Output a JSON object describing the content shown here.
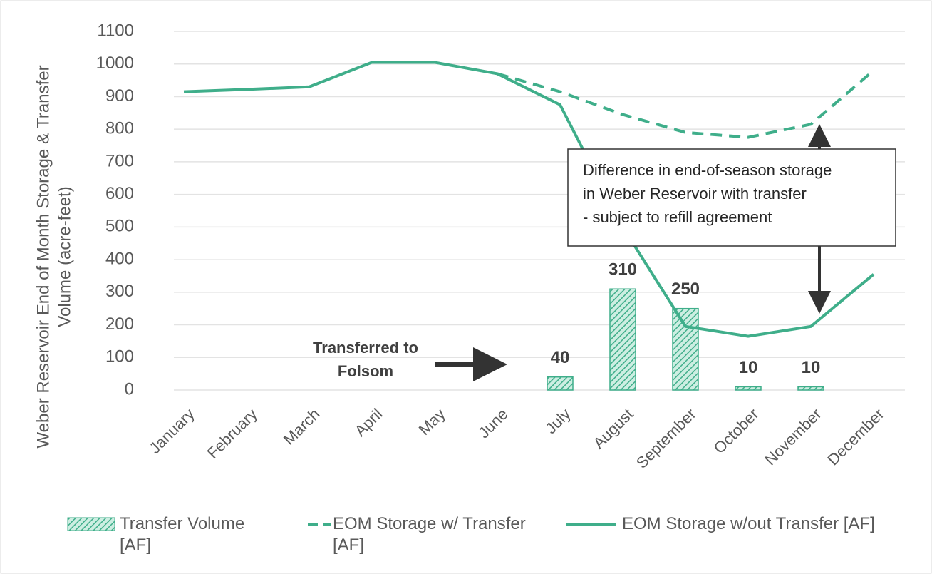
{
  "chart_data": {
    "type": "bar-line",
    "ylabel": [
      "Weber Reservoir End of Month Storage & Transfer",
      "Volume (acre-feet)"
    ],
    "categories": [
      "January",
      "February",
      "March",
      "April",
      "May",
      "June",
      "July",
      "August",
      "September",
      "October",
      "November",
      "December"
    ],
    "series": [
      {
        "name": "Transfer Volume [AF]",
        "type": "bar",
        "color": "#3fae8a",
        "values": [
          null,
          null,
          null,
          null,
          null,
          null,
          40,
          310,
          250,
          10,
          10,
          null
        ]
      },
      {
        "name": "EOM Storage w/ Transfer [AF]",
        "type": "line",
        "dash": true,
        "color": "#3fae8a",
        "values": [
          null,
          null,
          null,
          null,
          null,
          970,
          915,
          845,
          790,
          775,
          815,
          980
        ]
      },
      {
        "name": "EOM Storage w/out Transfer [AF]",
        "type": "line",
        "dash": false,
        "color": "#3fae8a",
        "values": [
          915,
          922,
          930,
          1005,
          1005,
          970,
          875,
          500,
          195,
          165,
          195,
          355
        ]
      }
    ],
    "ylim": [
      0,
      1100
    ],
    "yticks": [
      0,
      100,
      200,
      300,
      400,
      500,
      600,
      700,
      800,
      900,
      1000,
      1100
    ],
    "grid": true,
    "annotations": [
      [
        "Transferred to",
        "Folsom"
      ],
      [
        "Difference in end-of-season storage",
        "in Weber Reservoir with transfer",
        "- subject to refill agreement"
      ]
    ],
    "legend": "bottom"
  }
}
